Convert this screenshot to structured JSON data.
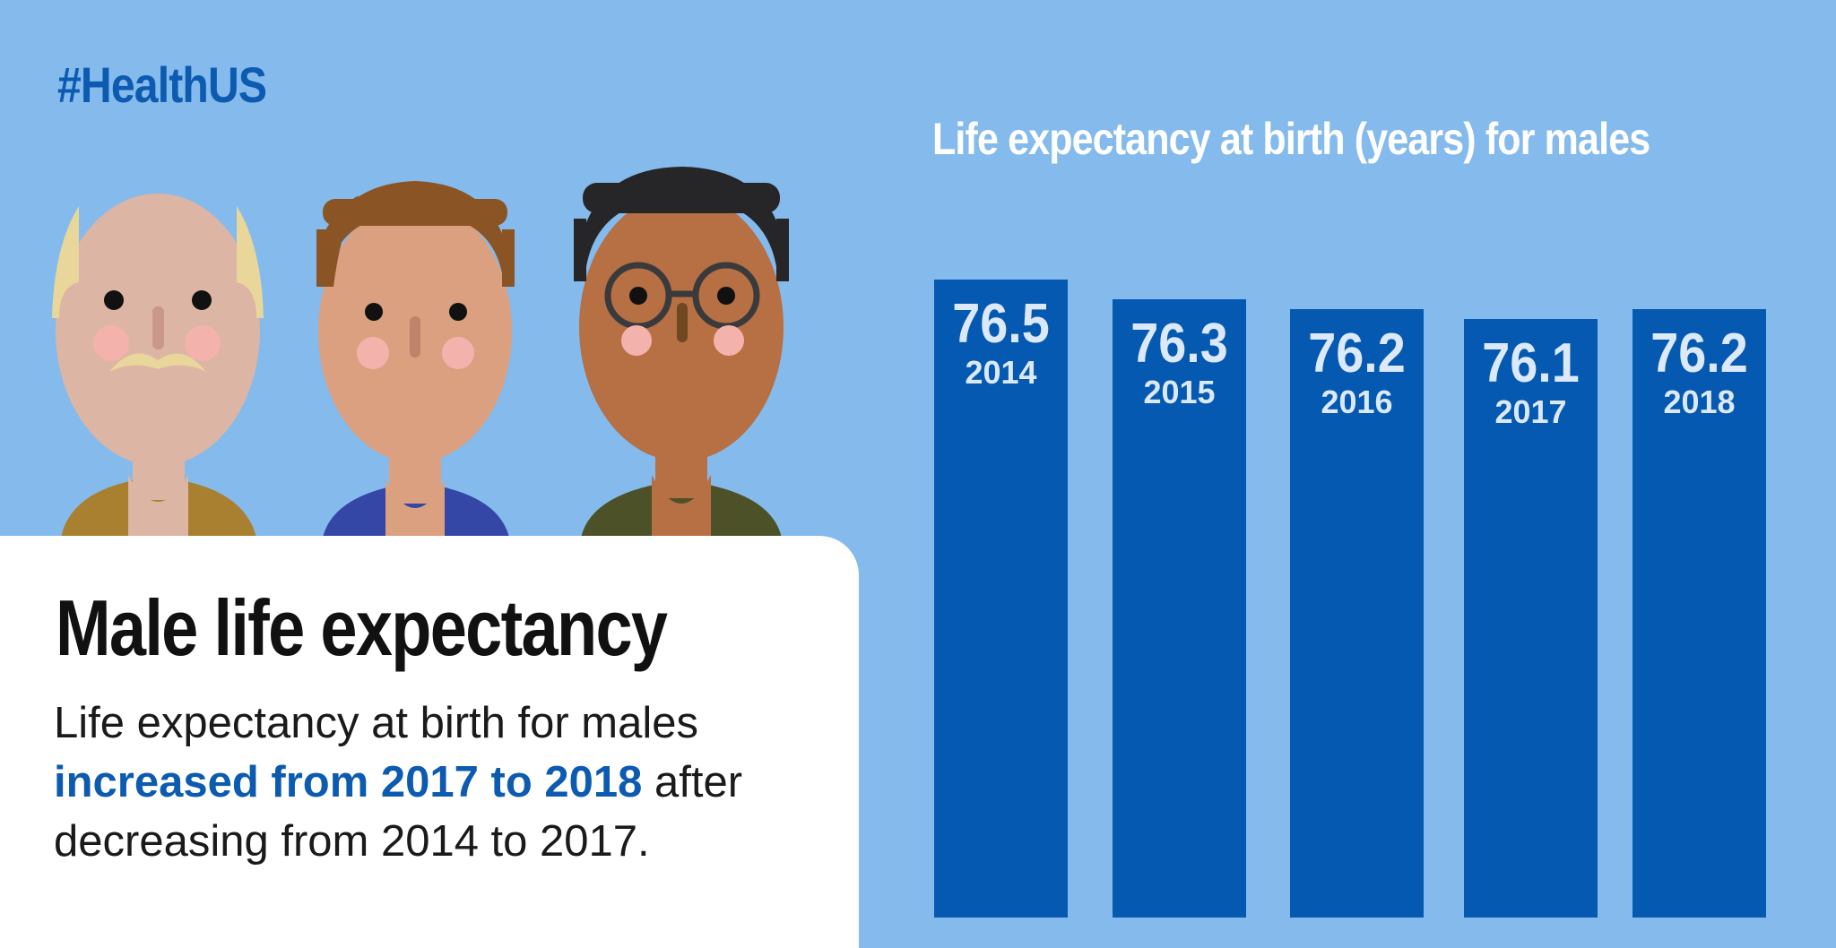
{
  "hashtag": "#HealthUS",
  "card": {
    "title": "Male life expectancy",
    "text_before": "Life expectancy at birth for males ",
    "text_highlight": "increased from 2017 to 2018",
    "text_after": " after decreasing from 2014 to 2017."
  },
  "colors": {
    "background": "#84bbec",
    "bar": "#0559b0",
    "bar_value_label": "#dbe9fb",
    "bar_year_label": "#dbe9fb",
    "highlight_text": "#0c5bb0"
  },
  "illustration": {
    "people": [
      {
        "name": "older-man-with-mustache"
      },
      {
        "name": "man-with-brown-hair"
      },
      {
        "name": "man-with-glasses"
      }
    ]
  },
  "chart_data": {
    "type": "bar",
    "title": "Life expectancy at birth (years) for males",
    "categories": [
      "2014",
      "2015",
      "2016",
      "2017",
      "2018"
    ],
    "values": [
      76.5,
      76.3,
      76.2,
      76.1,
      76.2
    ],
    "value_labels": [
      "76.5",
      "76.3",
      "76.2",
      "76.1",
      "76.2"
    ],
    "xlabel": "",
    "ylabel": "",
    "grid": false,
    "legend": "none"
  }
}
